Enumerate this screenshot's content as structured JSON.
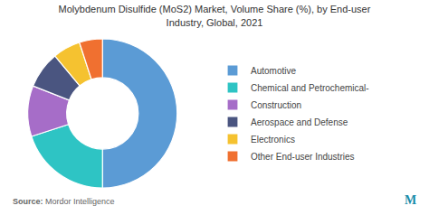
{
  "chart_data": {
    "type": "pie",
    "title": "Molybdenum Disulfide (MoS2) Market, Volume Share (%), by End-user\nIndustry, Global, 2021",
    "categories": [
      "Automotive",
      "Chemical and Petrochemical-",
      "Construction",
      "Aerospace and Defense",
      "Electronics",
      "Other End-user Industries"
    ],
    "values": [
      50,
      20,
      11,
      8,
      6,
      5
    ],
    "colors": [
      "#5b9bd5",
      "#2ec4c4",
      "#a66dc8",
      "#4a5580",
      "#f5c230",
      "#f07030"
    ],
    "legend": "right",
    "annotations": [
      "Source:",
      "Mordor Intelligence",
      "Μ"
    ]
  }
}
